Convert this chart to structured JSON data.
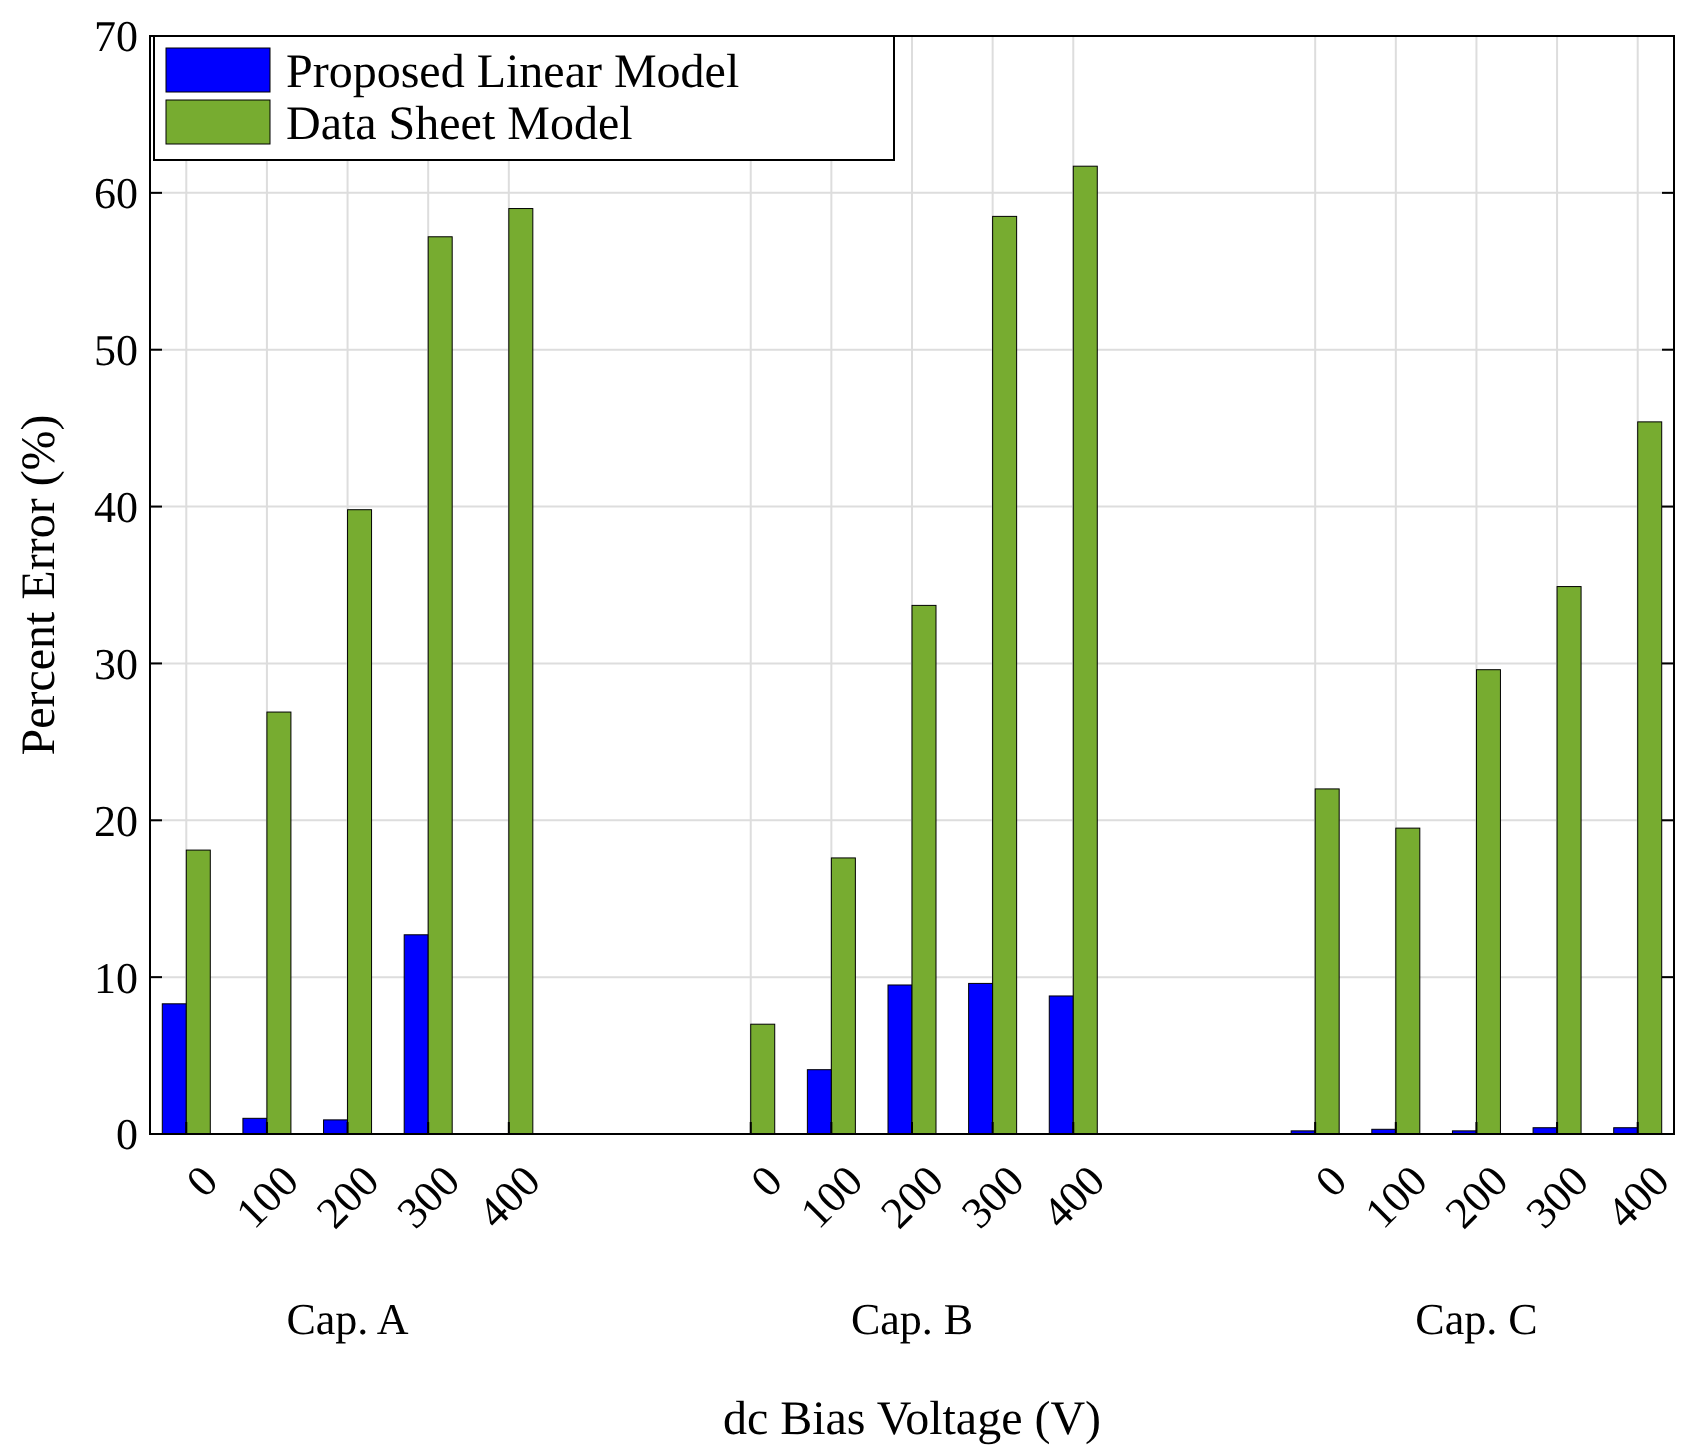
{
  "chart_data": {
    "type": "bar",
    "xlabel": "dc Bias Voltage (V)",
    "ylabel": "Percent Error (%)",
    "categories": [
      "0",
      "100",
      "200",
      "300",
      "400",
      null,
      null,
      "0",
      "100",
      "200",
      "300",
      "400",
      null,
      null,
      "0",
      "100",
      "200",
      "300",
      "400"
    ],
    "series": [
      {
        "name": "Proposed Linear Model",
        "color": "#0000ff",
        "values": [
          8.3,
          1.0,
          0.9,
          12.7,
          0,
          null,
          null,
          0,
          4.1,
          9.5,
          9.6,
          8.8,
          null,
          null,
          0.2,
          0.3,
          0.2,
          0.4,
          0.4
        ]
      },
      {
        "name": "Data Sheet Model",
        "color": "#77ac30",
        "values": [
          18.1,
          26.9,
          39.8,
          57.2,
          59.0,
          null,
          null,
          7.0,
          17.6,
          33.7,
          58.5,
          61.7,
          null,
          null,
          22.0,
          19.5,
          29.6,
          34.9,
          45.4
        ]
      }
    ],
    "annotations": [
      "Cap. A",
      "Cap. B",
      "Cap. C"
    ],
    "ylim": [
      0,
      70
    ],
    "yticks": [
      0,
      10,
      20,
      30,
      40,
      50,
      60,
      70
    ],
    "grid": true,
    "legend": "top left"
  }
}
